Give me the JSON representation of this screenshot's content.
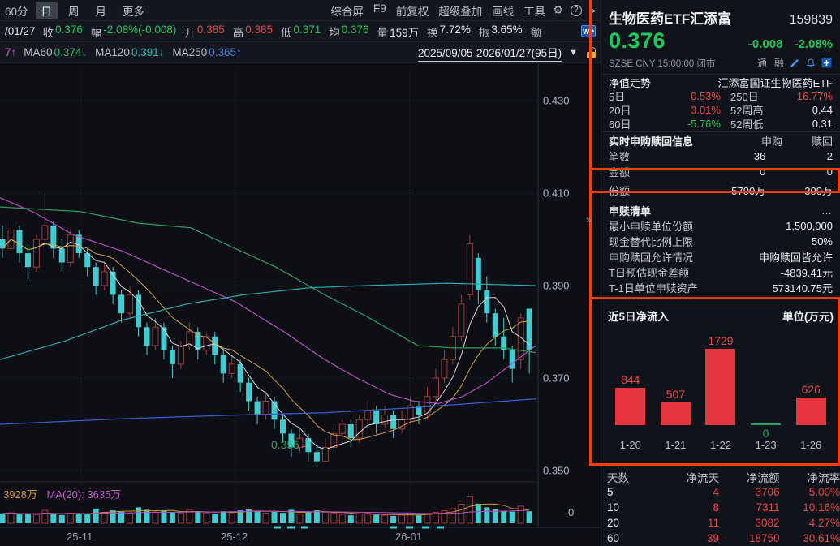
{
  "toolbar": {
    "period": "60分",
    "tabs": [
      {
        "label": "日",
        "active": true
      },
      {
        "label": "周",
        "active": false
      },
      {
        "label": "月",
        "active": false
      },
      {
        "label": "更多",
        "active": false
      }
    ],
    "right_items": [
      "综合屏",
      "F9",
      "前复权",
      "超级叠加",
      "画线",
      "工具"
    ],
    "gear_icon": "⚙",
    "help_icon": "?",
    "chevron_icon": ">"
  },
  "quote_bar": {
    "date": "/01/27",
    "fields": [
      {
        "label": "收",
        "value": "0.376",
        "tone": "green"
      },
      {
        "label": "幅",
        "value": "-2.08%(-0.008)",
        "tone": "green"
      },
      {
        "label": "开",
        "value": "0.385",
        "tone": "red"
      },
      {
        "label": "高",
        "value": "0.385",
        "tone": "red"
      },
      {
        "label": "低",
        "value": "0.371",
        "tone": "green"
      },
      {
        "label": "均",
        "value": "0.376",
        "tone": "green"
      },
      {
        "label": "量",
        "value": "159万",
        "tone": "white"
      },
      {
        "label": "换",
        "value": "7.72%",
        "tone": "white"
      },
      {
        "label": "振",
        "value": "3.65%",
        "tone": "white"
      },
      {
        "label": "额",
        "value": "",
        "tone": "white"
      }
    ],
    "wp_icon": "WP"
  },
  "ma_bar": {
    "partial": "7↑",
    "items": [
      {
        "label": "MA60",
        "value": "0.374↓",
        "tone": "ma-green"
      },
      {
        "label": "MA120",
        "value": "0.391↓",
        "tone": "ma-cyan"
      },
      {
        "label": "MA250",
        "value": "0.365↑",
        "tone": "ma-blue"
      }
    ],
    "date_range": "2025/09/05-2026/01/27(95日)",
    "dropdown_icon": "▼",
    "lock_icon": "unlocked-padlock"
  },
  "chart": {
    "y_labels": [
      "0.430",
      "0.410",
      "0.390",
      "0.370",
      "0.350"
    ],
    "x_labels": [
      {
        "text": "25-11",
        "x": 100
      },
      {
        "text": "25-12",
        "x": 290
      },
      {
        "text": "26-01",
        "x": 505
      }
    ],
    "annotation_value": "0.355",
    "annotation_arrow": "→",
    "volume_label_value": "3928万",
    "volume_label_ma": "MA(20): 3635万",
    "volume_zero": "0",
    "expand_icon": "»"
  },
  "chart_data": [
    {
      "type": "candlestick",
      "title": "生物医药ETF汇添富 159839 日K",
      "price_axis": [
        0.43,
        0.41,
        0.39,
        0.37,
        0.35
      ],
      "ylim": [
        0.344,
        0.438
      ],
      "grid": true,
      "candles": [
        [
          0.4,
          0.403,
          0.396,
          0.398
        ],
        [
          0.398,
          0.404,
          0.397,
          0.402
        ],
        [
          0.402,
          0.403,
          0.395,
          0.397
        ],
        [
          0.397,
          0.399,
          0.391,
          0.394
        ],
        [
          0.394,
          0.401,
          0.393,
          0.4
        ],
        [
          0.4,
          0.41,
          0.399,
          0.403
        ],
        [
          0.403,
          0.404,
          0.396,
          0.398
        ],
        [
          0.398,
          0.4,
          0.393,
          0.395
        ],
        [
          0.395,
          0.402,
          0.394,
          0.401
        ],
        [
          0.401,
          0.402,
          0.396,
          0.397
        ],
        [
          0.397,
          0.398,
          0.392,
          0.394
        ],
        [
          0.394,
          0.395,
          0.388,
          0.39
        ],
        [
          0.39,
          0.395,
          0.389,
          0.393
        ],
        [
          0.393,
          0.394,
          0.386,
          0.388
        ],
        [
          0.388,
          0.389,
          0.382,
          0.384
        ],
        [
          0.384,
          0.39,
          0.383,
          0.388
        ],
        [
          0.388,
          0.389,
          0.379,
          0.381
        ],
        [
          0.381,
          0.382,
          0.375,
          0.377
        ],
        [
          0.377,
          0.383,
          0.376,
          0.381
        ],
        [
          0.381,
          0.382,
          0.374,
          0.376
        ],
        [
          0.376,
          0.377,
          0.37,
          0.373
        ],
        [
          0.373,
          0.378,
          0.372,
          0.377
        ],
        [
          0.377,
          0.382,
          0.376,
          0.38
        ],
        [
          0.38,
          0.381,
          0.374,
          0.376
        ],
        [
          0.376,
          0.38,
          0.375,
          0.379
        ],
        [
          0.379,
          0.38,
          0.373,
          0.375
        ],
        [
          0.375,
          0.376,
          0.369,
          0.371
        ],
        [
          0.371,
          0.375,
          0.37,
          0.373
        ],
        [
          0.373,
          0.374,
          0.367,
          0.369
        ],
        [
          0.369,
          0.37,
          0.363,
          0.365
        ],
        [
          0.365,
          0.366,
          0.36,
          0.362
        ],
        [
          0.362,
          0.367,
          0.361,
          0.365
        ],
        [
          0.365,
          0.366,
          0.359,
          0.361
        ],
        [
          0.361,
          0.362,
          0.356,
          0.358
        ],
        [
          0.358,
          0.359,
          0.353,
          0.355
        ],
        [
          0.355,
          0.359,
          0.354,
          0.357
        ],
        [
          0.357,
          0.358,
          0.352,
          0.354
        ],
        [
          0.354,
          0.356,
          0.351,
          0.352
        ],
        [
          0.352,
          0.357,
          0.352,
          0.355
        ],
        [
          0.355,
          0.36,
          0.354,
          0.358
        ],
        [
          0.358,
          0.361,
          0.356,
          0.36
        ],
        [
          0.36,
          0.361,
          0.355,
          0.357
        ],
        [
          0.357,
          0.362,
          0.356,
          0.361
        ],
        [
          0.361,
          0.365,
          0.36,
          0.363
        ],
        [
          0.363,
          0.364,
          0.358,
          0.36
        ],
        [
          0.36,
          0.364,
          0.359,
          0.362
        ],
        [
          0.362,
          0.363,
          0.357,
          0.359
        ],
        [
          0.359,
          0.363,
          0.358,
          0.361
        ],
        [
          0.361,
          0.366,
          0.36,
          0.364
        ],
        [
          0.364,
          0.365,
          0.36,
          0.362
        ],
        [
          0.362,
          0.368,
          0.361,
          0.366
        ],
        [
          0.366,
          0.372,
          0.365,
          0.37
        ],
        [
          0.37,
          0.376,
          0.369,
          0.374
        ],
        [
          0.374,
          0.381,
          0.373,
          0.379
        ],
        [
          0.379,
          0.388,
          0.378,
          0.386
        ],
        [
          0.388,
          0.401,
          0.387,
          0.399
        ],
        [
          0.396,
          0.397,
          0.386,
          0.389
        ],
        [
          0.389,
          0.392,
          0.382,
          0.384
        ],
        [
          0.384,
          0.385,
          0.377,
          0.379
        ],
        [
          0.379,
          0.383,
          0.374,
          0.376
        ],
        [
          0.376,
          0.377,
          0.369,
          0.372
        ],
        [
          0.374,
          0.384,
          0.372,
          0.383
        ],
        [
          0.385,
          0.385,
          0.371,
          0.376
        ]
      ],
      "volumes": [
        3200,
        3400,
        2900,
        3100,
        2800,
        4200,
        3000,
        2700,
        3300,
        2900,
        3100,
        4800,
        3600,
        4200,
        3900,
        3300,
        5200,
        4400,
        3700,
        4100,
        3600,
        3200,
        4500,
        3800,
        3400,
        3100,
        3900,
        3500,
        4200,
        4600,
        4100,
        3300,
        3700,
        3400,
        4400,
        3000,
        3800,
        4200,
        3600,
        3200,
        2900,
        2600,
        3100,
        3300,
        2800,
        2600,
        2400,
        2700,
        3000,
        2800,
        3200,
        3600,
        4100,
        4800,
        6200,
        8800,
        6400,
        5200,
        4600,
        4100,
        3800,
        5600,
        3928
      ],
      "below_marks": [
        341,
        358,
        375,
        484,
        504,
        524,
        542
      ],
      "ma_overlays": [
        {
          "name": "MA20",
          "color": "#b44fc0",
          "points": [
            [
              0,
              0.409
            ],
            [
              40,
              0.406
            ],
            [
              90,
              0.401
            ],
            [
              150,
              0.3975
            ],
            [
              220,
              0.392
            ],
            [
              290,
              0.3865
            ],
            [
              350,
              0.38
            ],
            [
              400,
              0.374
            ],
            [
              440,
              0.37
            ],
            [
              480,
              0.3665
            ],
            [
              510,
              0.365
            ],
            [
              540,
              0.3645
            ],
            [
              570,
              0.366
            ],
            [
              600,
              0.369
            ],
            [
              630,
              0.373
            ],
            [
              660,
              0.377
            ]
          ]
        },
        {
          "name": "MA60",
          "color": "#2f9e63",
          "points": [
            [
              0,
              0.407
            ],
            [
              100,
              0.406
            ],
            [
              170,
              0.4035
            ],
            [
              235,
              0.4025
            ],
            [
              290,
              0.398
            ],
            [
              340,
              0.394
            ],
            [
              400,
              0.388
            ],
            [
              450,
              0.3835
            ],
            [
              515,
              0.377
            ],
            [
              560,
              0.3765
            ],
            [
              620,
              0.3765
            ],
            [
              660,
              0.3755
            ]
          ]
        },
        {
          "name": "MA120",
          "color": "#2fa8b0",
          "points": [
            [
              0,
              0.374
            ],
            [
              80,
              0.378
            ],
            [
              150,
              0.3825
            ],
            [
              230,
              0.386
            ],
            [
              300,
              0.388
            ],
            [
              380,
              0.3895
            ],
            [
              450,
              0.39
            ],
            [
              550,
              0.3905
            ],
            [
              660,
              0.39
            ]
          ]
        },
        {
          "name": "MA250",
          "color": "#3c5fd0",
          "points": [
            [
              0,
              0.36
            ],
            [
              150,
              0.3612
            ],
            [
              290,
              0.362
            ],
            [
              400,
              0.3625
            ],
            [
              500,
              0.3635
            ],
            [
              580,
              0.3645
            ],
            [
              660,
              0.3655
            ]
          ]
        }
      ]
    },
    {
      "type": "bar",
      "title": "近5日净流入",
      "unit_label": "单位(万元)",
      "categories": [
        "1-20",
        "1-21",
        "1-22",
        "1-23",
        "1-26"
      ],
      "values": [
        844,
        507,
        1729,
        0,
        626
      ],
      "bar_color": "#e5353f",
      "zero_color": "#2aa35a",
      "ylim": [
        0,
        1729
      ]
    }
  ],
  "panel": {
    "title": "生物医药ETF汇添富",
    "code": "159839",
    "price": "0.376",
    "change": "-0.008",
    "change_pct": "-2.08%",
    "meta": "SZSE  CNY  15:00:00  闭市",
    "tags": [
      "通",
      "融"
    ],
    "nav_header": {
      "left": "净值走势",
      "right": "汇添富国证生物医药ETF"
    },
    "nav_stats": [
      {
        "l1": "5日",
        "v1": "0.53%",
        "t1": "red",
        "l2": "250日",
        "v2": "16.77%",
        "t2": "red"
      },
      {
        "l1": "20日",
        "v1": "3.01%",
        "t1": "red",
        "l2": "52周高",
        "v2": "0.44",
        "t2": "white"
      },
      {
        "l1": "60日",
        "v1": "-5.76%",
        "t1": "green",
        "l2": "52周低",
        "v2": "0.31",
        "t2": "white"
      }
    ],
    "subscribe": {
      "header": "实时申购赎回信息",
      "col1": "申购",
      "col2": "赎回",
      "rows": [
        {
          "label": "笔数",
          "v1": "36",
          "v2": "2",
          "highlight": false
        },
        {
          "label": "金额",
          "v1": "0",
          "v2": "0",
          "highlight": false
        },
        {
          "label": "份额",
          "v1": "5700万",
          "v2": "300万",
          "highlight": true
        }
      ]
    },
    "redeem_list": {
      "header": "申赎清单",
      "more": "…",
      "rows": [
        {
          "label": "最小申赎单位份额",
          "value": "1,500,000"
        },
        {
          "label": "现金替代比例上限",
          "value": "50%"
        },
        {
          "label": "申购赎回允许情况",
          "value": "申购赎回皆允许"
        },
        {
          "label": "T日预估现金差额",
          "value": "-4839.41元"
        },
        {
          "label": "T-1日单位申赎资产",
          "value": "573140.75元"
        }
      ]
    },
    "flow_table": {
      "headers": [
        "天数",
        "净流天",
        "净流额",
        "净流率"
      ],
      "rows": [
        [
          "5",
          "4",
          "3706",
          "5.00%"
        ],
        [
          "10",
          "8",
          "7311",
          "10.16%"
        ],
        [
          "20",
          "11",
          "3082",
          "4.27%"
        ],
        [
          "60",
          "39",
          "18750",
          "30.61%"
        ]
      ]
    }
  }
}
